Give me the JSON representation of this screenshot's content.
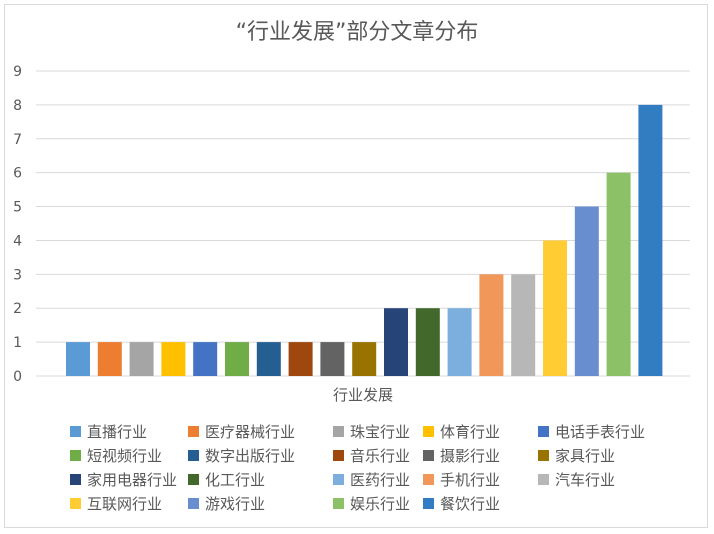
{
  "chart_data": {
    "type": "bar",
    "title": "“行业发展”部分文章分布",
    "xlabel": "行业发展",
    "ylabel": "",
    "ylim": [
      0,
      9
    ],
    "yticks": [
      0,
      1,
      2,
      3,
      4,
      5,
      6,
      7,
      8,
      9
    ],
    "grid": true,
    "legend_position": "bottom",
    "series": [
      {
        "name": "直播行业",
        "value": 1,
        "color": "#5b9bd5"
      },
      {
        "name": "医疗器械行业",
        "value": 1,
        "color": "#ed7d31"
      },
      {
        "name": "珠宝行业",
        "value": 1,
        "color": "#a5a5a5"
      },
      {
        "name": "体育行业",
        "value": 1,
        "color": "#ffc000"
      },
      {
        "name": "电话手表行业",
        "value": 1,
        "color": "#4472c4"
      },
      {
        "name": "短视频行业",
        "value": 1,
        "color": "#70ad47"
      },
      {
        "name": "数字出版行业",
        "value": 1,
        "color": "#255e91"
      },
      {
        "name": "音乐行业",
        "value": 1,
        "color": "#9e480e"
      },
      {
        "name": "摄影行业",
        "value": 1,
        "color": "#636363"
      },
      {
        "name": "家具行业",
        "value": 1,
        "color": "#997300"
      },
      {
        "name": "家用电器行业",
        "value": 2,
        "color": "#264478"
      },
      {
        "name": "化工行业",
        "value": 2,
        "color": "#43682b"
      },
      {
        "name": "医药行业",
        "value": 2,
        "color": "#7cafdd"
      },
      {
        "name": "手机行业",
        "value": 3,
        "color": "#f1975a"
      },
      {
        "name": "汽车行业",
        "value": 3,
        "color": "#b7b7b7"
      },
      {
        "name": "互联网行业",
        "value": 4,
        "color": "#ffcd33"
      },
      {
        "name": "游戏行业",
        "value": 5,
        "color": "#698ed0"
      },
      {
        "name": "娱乐行业",
        "value": 6,
        "color": "#8cc168"
      },
      {
        "name": "餐饮行业",
        "value": 8,
        "color": "#327dc2"
      }
    ]
  }
}
